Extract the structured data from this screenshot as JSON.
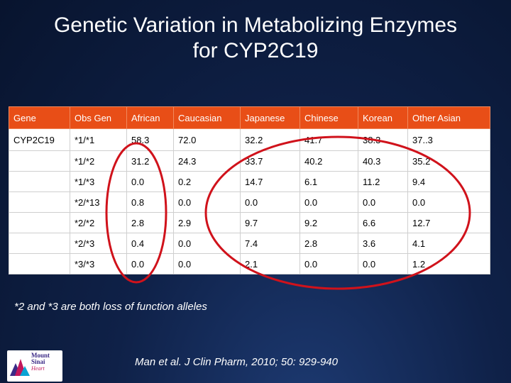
{
  "slide": {
    "title_line1": "Genetic Variation in Metabolizing Enzymes",
    "title_line2": "for CYP2C19",
    "footnote": "*2 and *3 are both loss of function alleles",
    "citation": "Man et al. J Clin Pharm, 2010; 50: 929-940"
  },
  "table": {
    "headers": [
      "Gene",
      "Obs Gen",
      "African",
      "Caucasian",
      "Japanese",
      "Chinese",
      "Korean",
      "Other Asian"
    ],
    "rows": [
      [
        "CYP2C19",
        "*1/*1",
        "58.3",
        "72.0",
        "32.2",
        "41.7",
        "38.3",
        "37..3"
      ],
      [
        "",
        "*1/*2",
        "31.2",
        "24.3",
        "33.7",
        "40.2",
        "40.3",
        "35.2"
      ],
      [
        "",
        "*1/*3",
        "0.0",
        "0.2",
        "14.7",
        "6.1",
        "11.2",
        "9.4"
      ],
      [
        "",
        "*2/*13",
        "0.8",
        "0.0",
        "0.0",
        "0.0",
        "0.0",
        "0.0"
      ],
      [
        "",
        "*2/*2",
        "2.8",
        "2.9",
        "9.7",
        "9.2",
        "6.6",
        "12.7"
      ],
      [
        "",
        "*2/*3",
        "0.4",
        "0.0",
        "7.4",
        "2.8",
        "3.6",
        "4.1"
      ],
      [
        "",
        "*3/*3",
        "0.0",
        "0.0",
        "2.1",
        "0.0",
        "0.0",
        "1.2"
      ]
    ]
  },
  "logo": {
    "line1": "Mount",
    "line2": "Sinai",
    "line3": "Heart"
  },
  "colors": {
    "header_bg": "#e84e17",
    "annotation_ellipse": "#d0121b"
  }
}
